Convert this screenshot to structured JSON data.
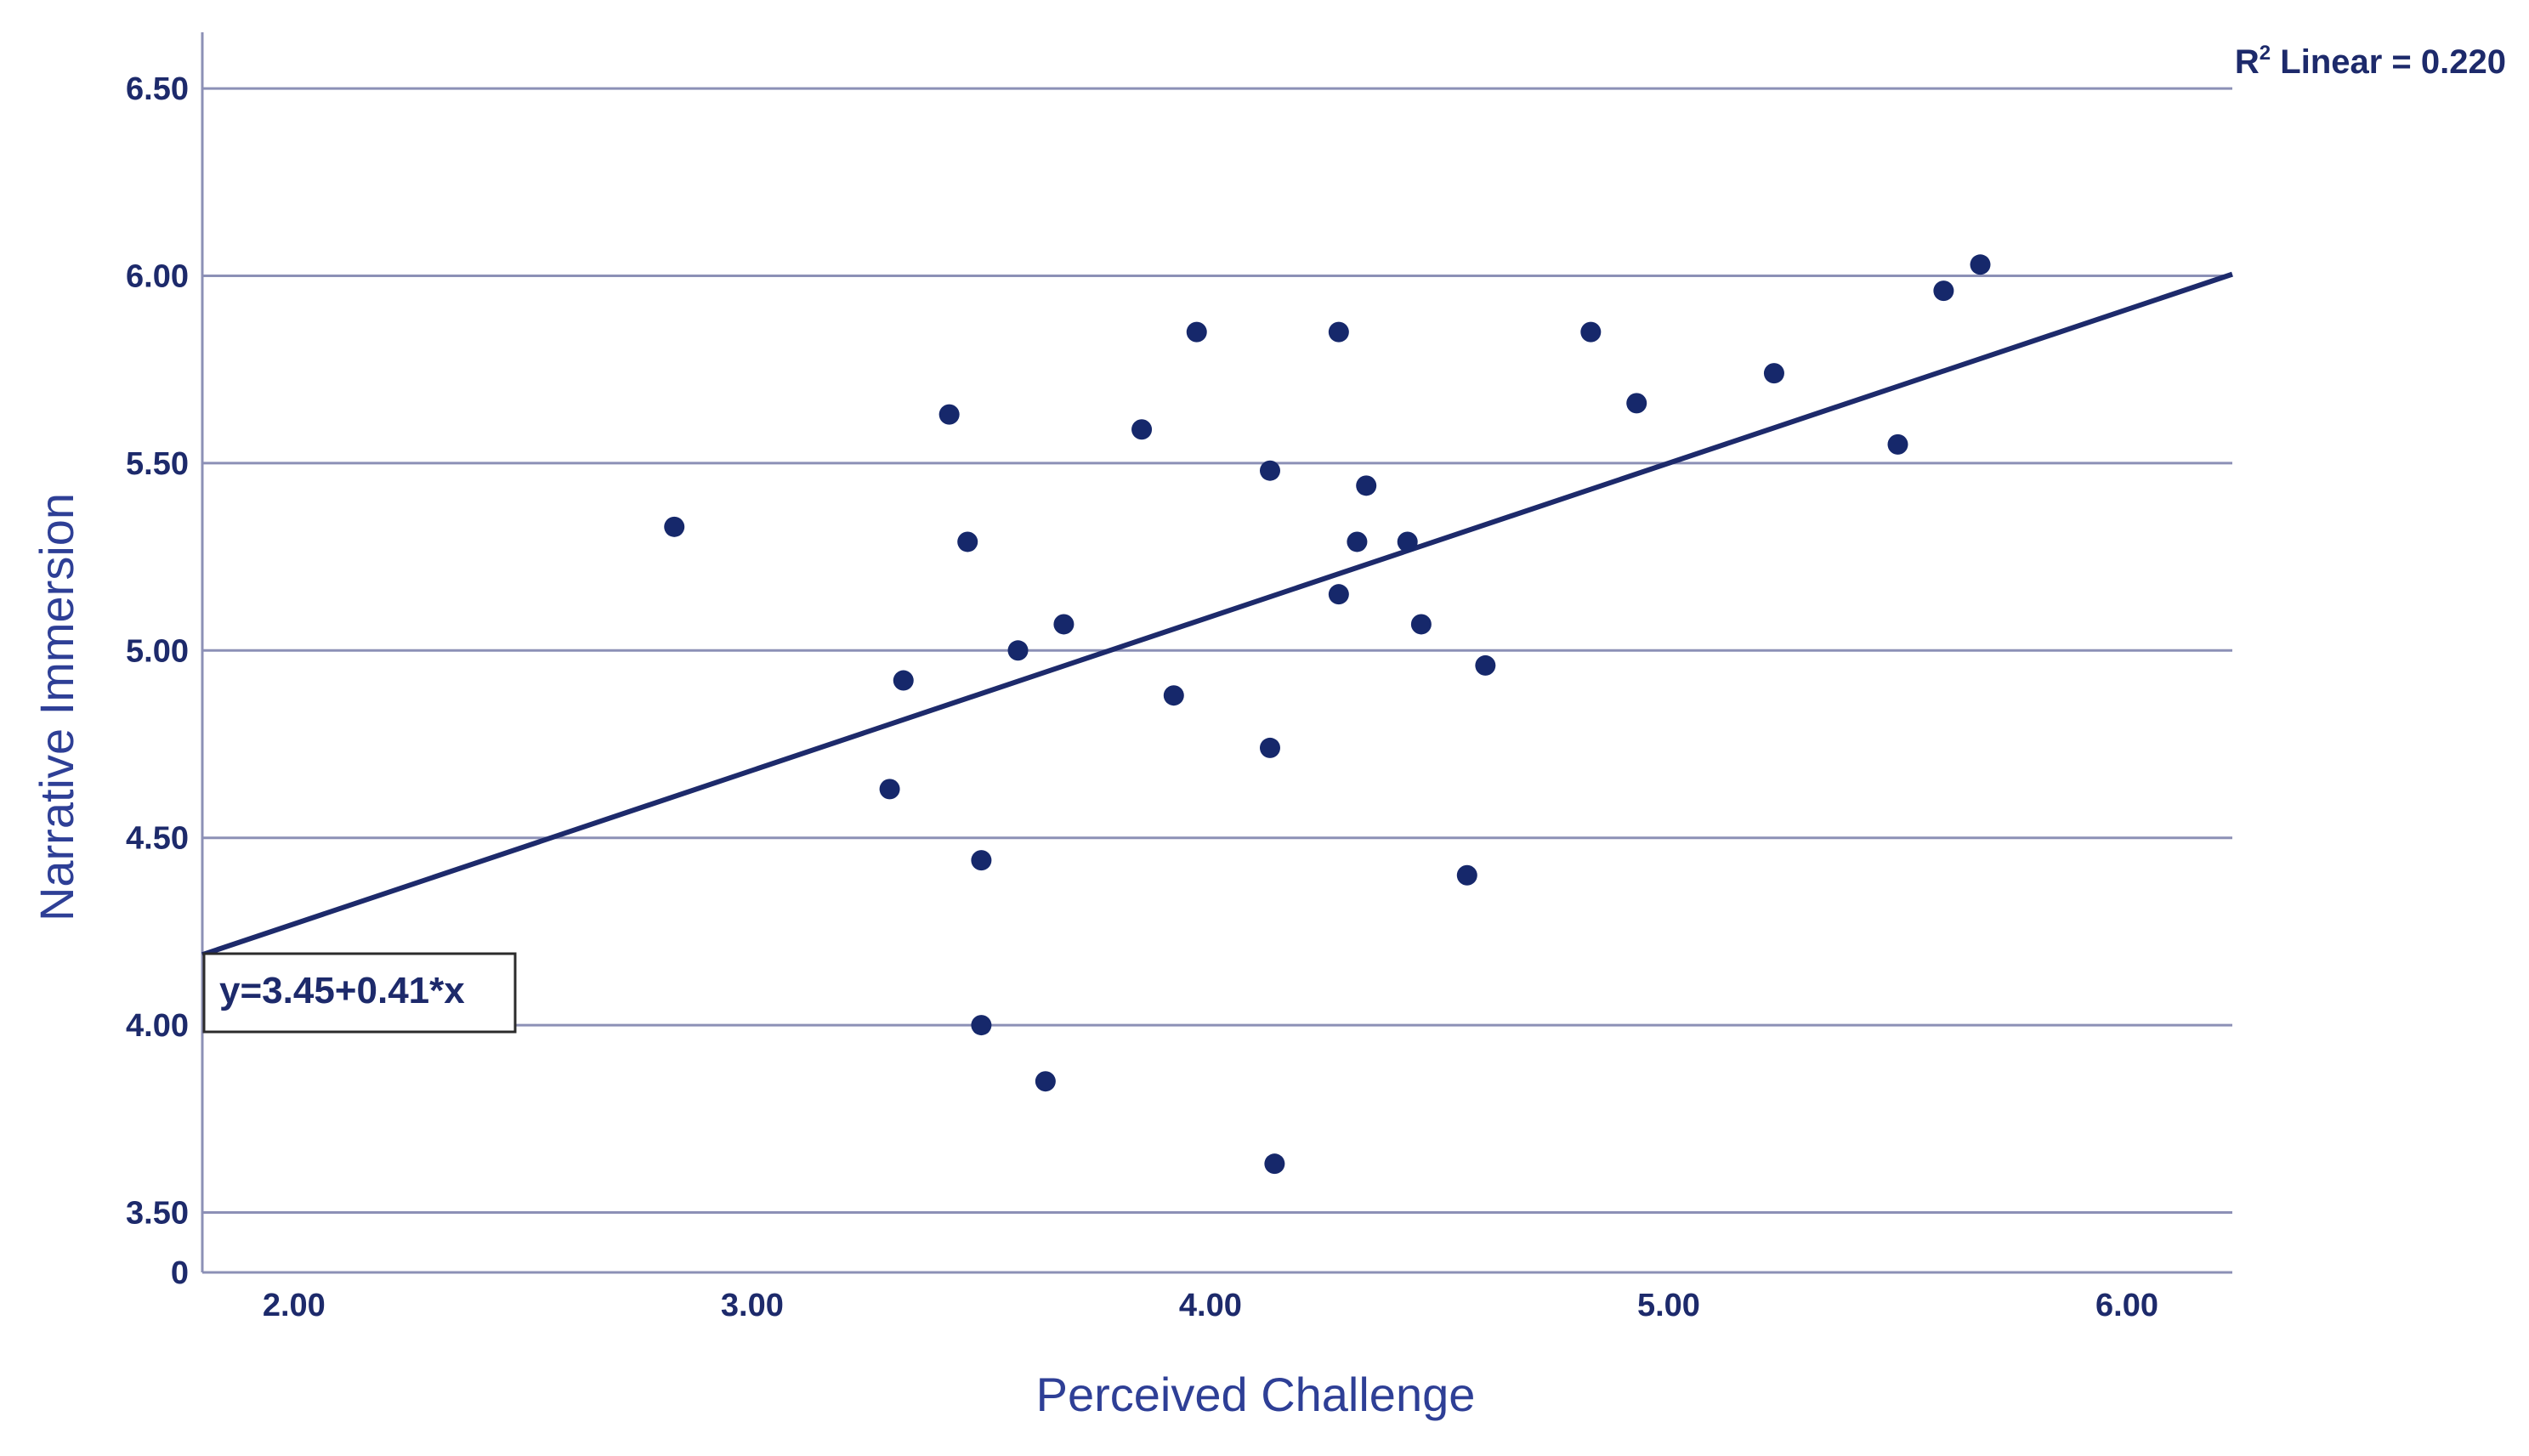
{
  "chart_data": {
    "type": "scatter",
    "xlabel": "Perceived Challenge",
    "ylabel": "Narrative Immersion",
    "x_ticks": [
      "2.00",
      "3.00",
      "4.00",
      "5.00",
      "6.00"
    ],
    "y_ticks": [
      "6.50",
      "6.00",
      "5.50",
      "5.00",
      "4.50",
      "4.00",
      "3.50"
    ],
    "y_origin_label": "0",
    "xlim": [
      1.8,
      6.23
    ],
    "ylim": [
      3.34,
      6.65
    ],
    "y_axis_break": true,
    "grid": "horizontal",
    "r2_label": {
      "prefix": "R",
      "sup": "2",
      "text": " Linear = 0.220"
    },
    "equation_label": "y=3.45+0.41*x",
    "fit_line": {
      "intercept": 3.45,
      "slope": 0.41
    },
    "points": [
      {
        "x": 2.83,
        "y": 5.33
      },
      {
        "x": 3.3,
        "y": 4.63
      },
      {
        "x": 3.33,
        "y": 4.92
      },
      {
        "x": 3.43,
        "y": 5.63
      },
      {
        "x": 3.47,
        "y": 5.29
      },
      {
        "x": 3.5,
        "y": 4.44
      },
      {
        "x": 3.5,
        "y": 4.0
      },
      {
        "x": 3.58,
        "y": 5.0
      },
      {
        "x": 3.64,
        "y": 3.85
      },
      {
        "x": 3.68,
        "y": 5.07
      },
      {
        "x": 3.85,
        "y": 5.59
      },
      {
        "x": 3.92,
        "y": 4.88
      },
      {
        "x": 3.97,
        "y": 5.85
      },
      {
        "x": 4.13,
        "y": 5.48
      },
      {
        "x": 4.13,
        "y": 4.74
      },
      {
        "x": 4.14,
        "y": 3.63
      },
      {
        "x": 4.28,
        "y": 5.85
      },
      {
        "x": 4.28,
        "y": 5.15
      },
      {
        "x": 4.32,
        "y": 5.29
      },
      {
        "x": 4.34,
        "y": 5.44
      },
      {
        "x": 4.43,
        "y": 5.29
      },
      {
        "x": 4.46,
        "y": 5.07
      },
      {
        "x": 4.56,
        "y": 4.4
      },
      {
        "x": 4.6,
        "y": 4.96
      },
      {
        "x": 4.83,
        "y": 5.85
      },
      {
        "x": 4.93,
        "y": 5.66
      },
      {
        "x": 5.23,
        "y": 5.74
      },
      {
        "x": 5.5,
        "y": 5.55
      },
      {
        "x": 5.6,
        "y": 5.96
      },
      {
        "x": 5.68,
        "y": 6.03
      }
    ],
    "colors": {
      "points": "#16286b",
      "fit_line": "#1d2a6b",
      "grid": "#8c90b6",
      "text": "#1d2a6b",
      "axis_title": "#2e3f96"
    }
  }
}
